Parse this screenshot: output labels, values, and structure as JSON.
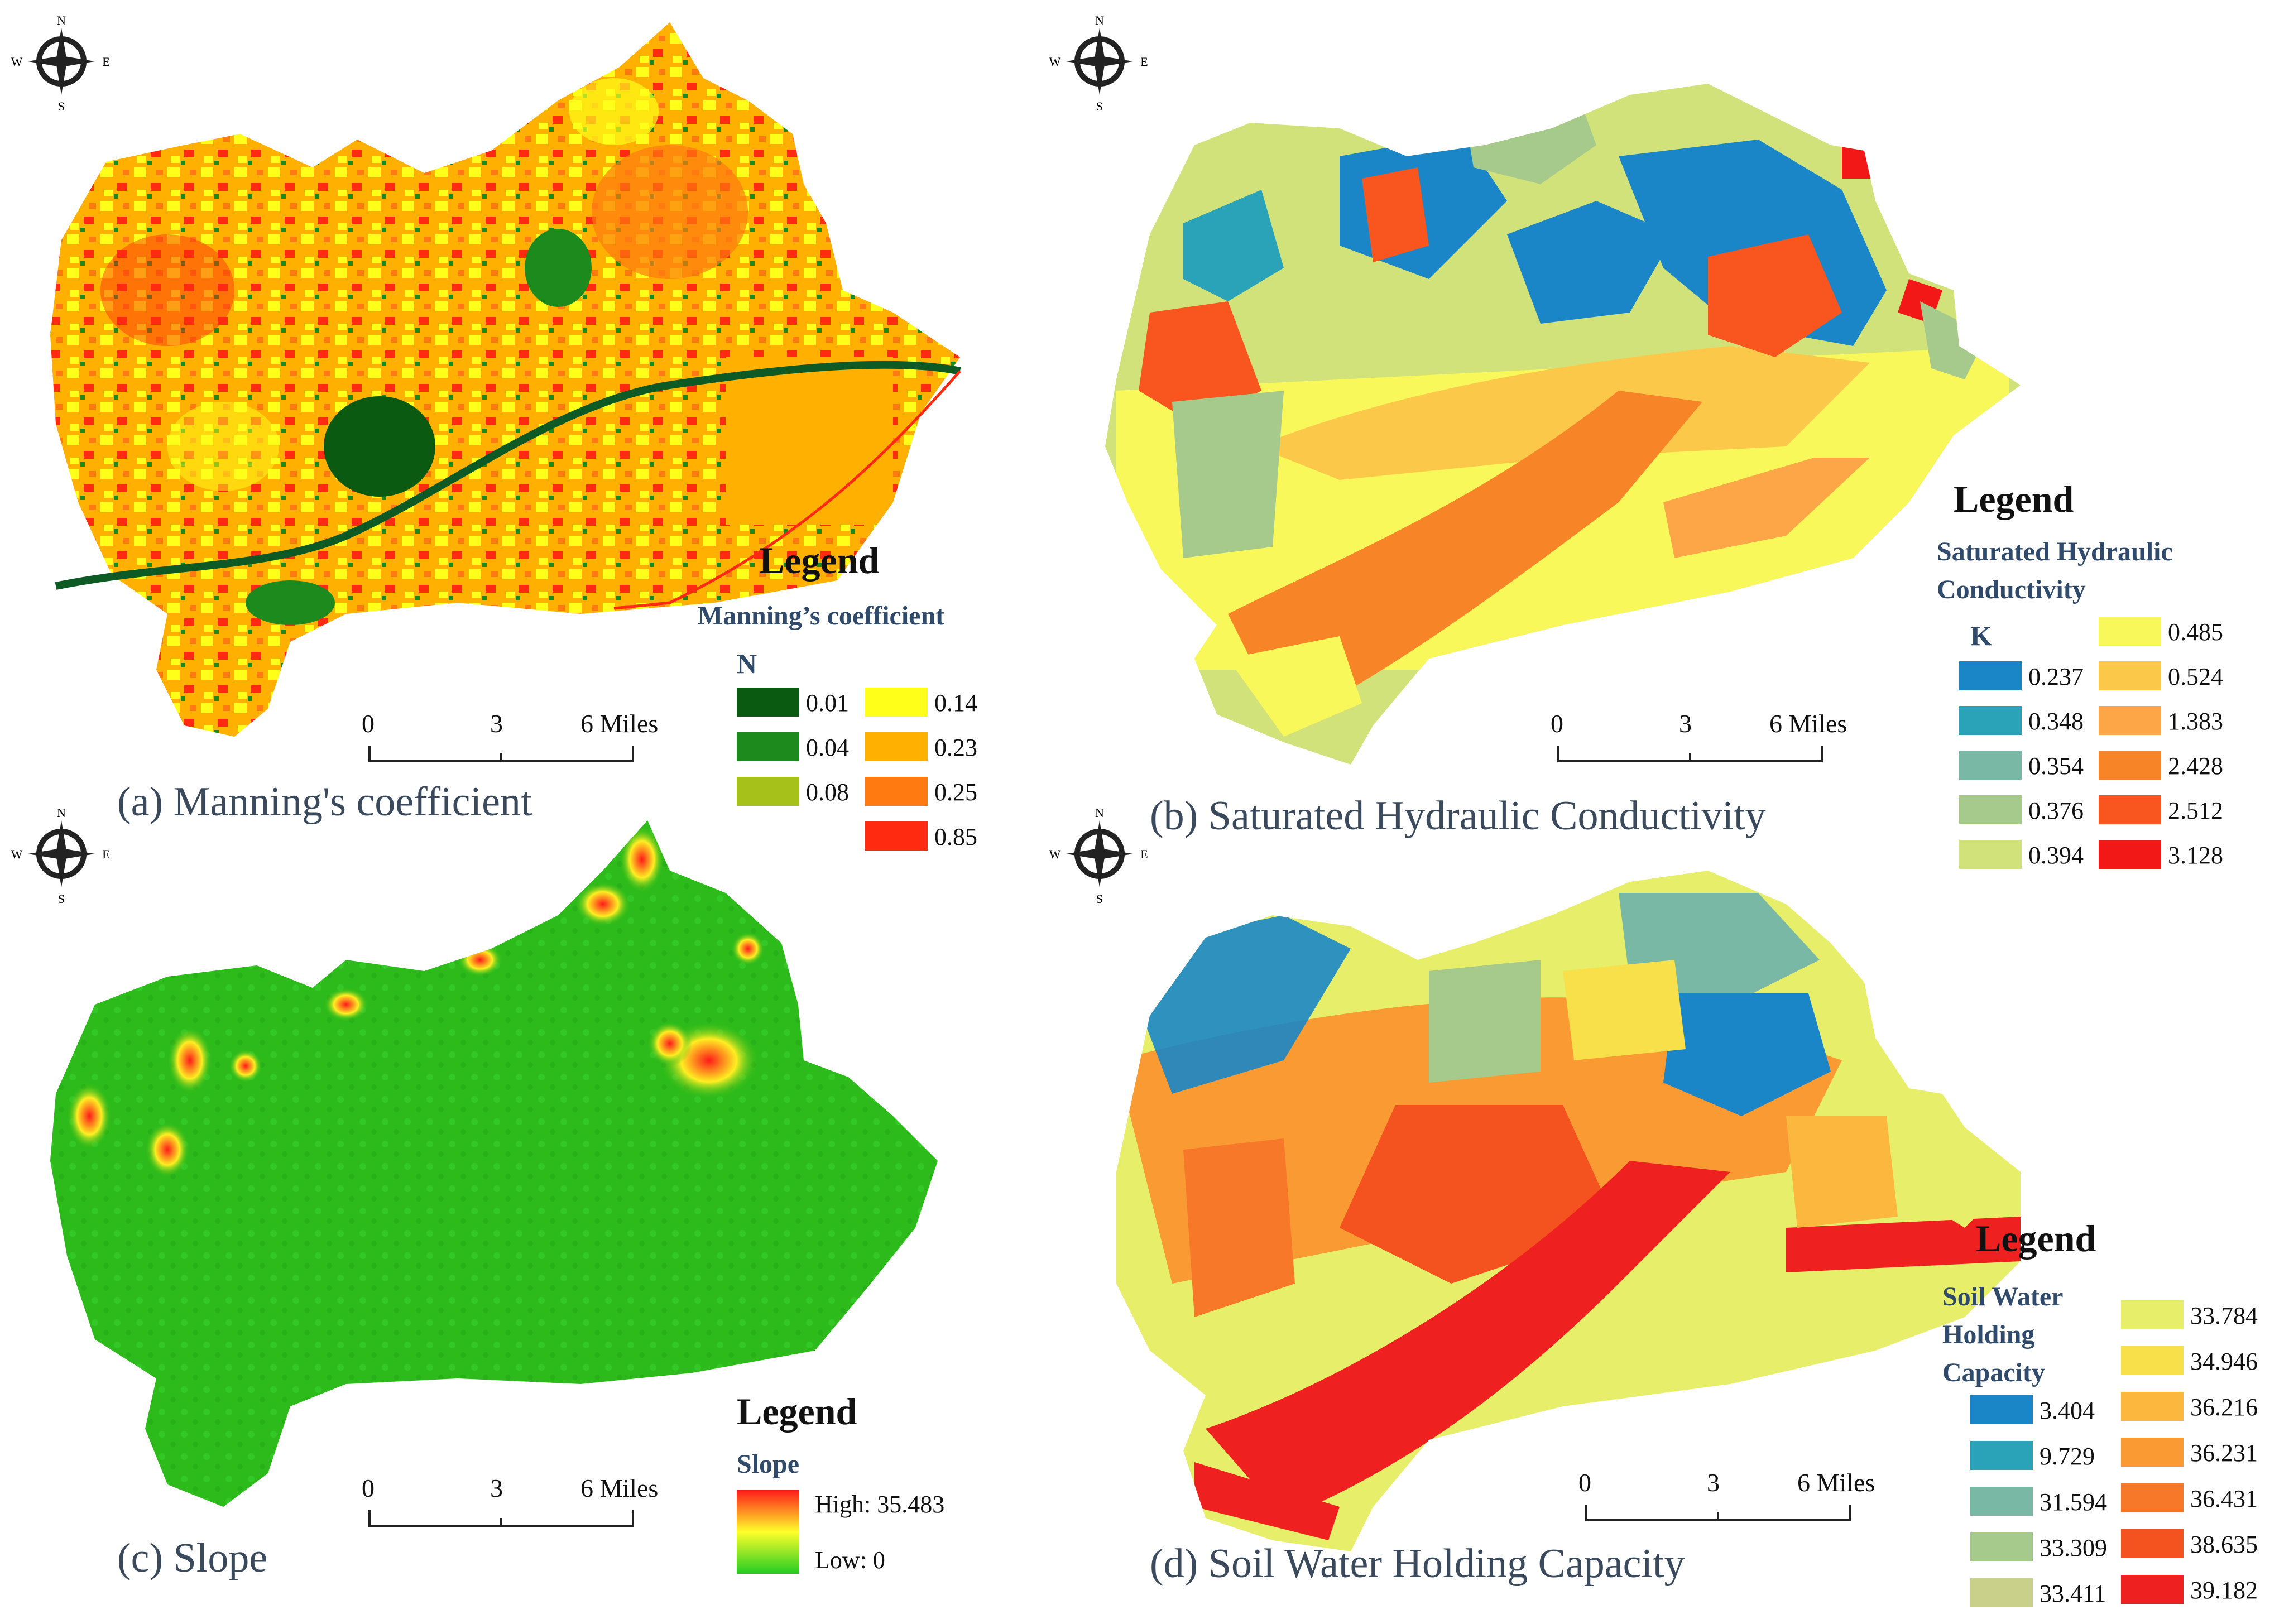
{
  "panels": [
    {
      "caption": "(a)  Manning's coefficient",
      "legend": {
        "title": "Legend",
        "subtitle": "Manning’s coefficient",
        "variable": "N",
        "items": [
          {
            "label": "0.01",
            "color": "#0a5a12"
          },
          {
            "label": "0.04",
            "color": "#1c8a1c"
          },
          {
            "label": "0.08",
            "color": "#a6c21a"
          },
          {
            "label": "0.14",
            "color": "#ffff1a"
          },
          {
            "label": "0.23",
            "color": "#ffb000"
          },
          {
            "label": "0.25",
            "color": "#ff7a10"
          },
          {
            "label": "0.85",
            "color": "#ff2a10"
          }
        ]
      },
      "scale": {
        "ticks": [
          "0",
          "3",
          "6 Miles"
        ]
      }
    },
    {
      "caption": "(b)  Saturated Hydraulic Conductivity",
      "legend": {
        "title": "Legend",
        "subtitle": "Saturated Hydraulic Conductivity",
        "variable": "K",
        "items": [
          {
            "label": "0.237",
            "color": "#1a86c8"
          },
          {
            "label": "0.348",
            "color": "#2aa3b8"
          },
          {
            "label": "0.354",
            "color": "#7ab8a6"
          },
          {
            "label": "0.376",
            "color": "#a6c98c"
          },
          {
            "label": "0.394",
            "color": "#d2e27a"
          },
          {
            "label": "0.485",
            "color": "#f8f85a"
          },
          {
            "label": "0.524",
            "color": "#fcc84a"
          },
          {
            "label": "1.383",
            "color": "#fca648"
          },
          {
            "label": "2.428",
            "color": "#f88428"
          },
          {
            "label": "2.512",
            "color": "#f8561e"
          },
          {
            "label": "3.128",
            "color": "#f21818"
          }
        ]
      },
      "scale": {
        "ticks": [
          "0",
          "3",
          "6 Miles"
        ]
      }
    },
    {
      "caption": "(c)  Slope",
      "legend": {
        "title": "Legend",
        "subtitle": "Slope",
        "high": "High: 35.483",
        "low": "Low:  0",
        "ramp": [
          "#ff1a1a",
          "#ffff2a",
          "#22cc22"
        ]
      },
      "scale": {
        "ticks": [
          "0",
          "3",
          "6 Miles"
        ]
      }
    },
    {
      "caption": "(d)  Soil Water Holding Capacity",
      "legend": {
        "title": "Legend",
        "subtitle": "Soil Water Holding Capacity",
        "items": [
          {
            "label": "3.404",
            "color": "#1a86c8"
          },
          {
            "label": "9.729",
            "color": "#2aa3b8"
          },
          {
            "label": "31.594",
            "color": "#7ab8a6"
          },
          {
            "label": "33.309",
            "color": "#a6c98c"
          },
          {
            "label": "33.411",
            "color": "#c8d08a"
          },
          {
            "label": "33.784",
            "color": "#e6ee6a"
          },
          {
            "label": "34.946",
            "color": "#f8e04a"
          },
          {
            "label": "36.216",
            "color": "#fcb83e"
          },
          {
            "label": "36.231",
            "color": "#fa9a32"
          },
          {
            "label": "36.431",
            "color": "#f8782a"
          },
          {
            "label": "38.635",
            "color": "#f4521e"
          },
          {
            "label": "39.182",
            "color": "#ee2020"
          }
        ]
      },
      "scale": {
        "ticks": [
          "0",
          "3",
          "6 Miles"
        ]
      }
    }
  ],
  "compass": {
    "n": "N",
    "s": "S",
    "e": "E",
    "w": "W"
  }
}
